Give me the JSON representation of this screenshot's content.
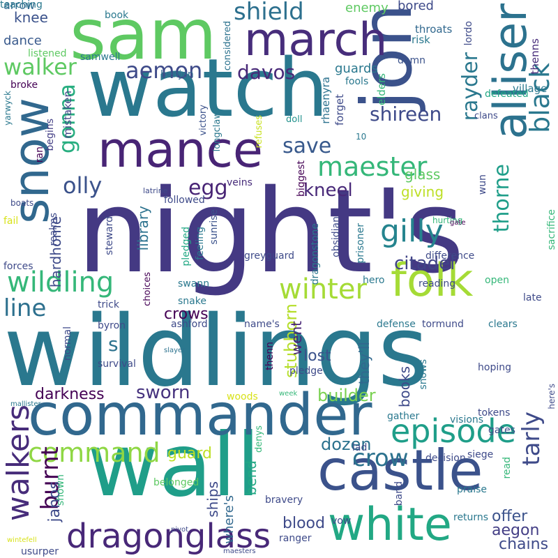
{
  "words": [
    {
      "text": "night's",
      "color": "#443983"
    },
    {
      "text": "wildlings",
      "color": "#2a788e"
    },
    {
      "text": "wall",
      "color": "#1f9e89"
    },
    {
      "text": "watch",
      "color": "#2a788e"
    },
    {
      "text": "sam",
      "color": "#5ec962"
    },
    {
      "text": "jon",
      "color": "#3b528b"
    },
    {
      "text": "commander",
      "color": "#31688e"
    },
    {
      "text": "castle",
      "color": "#3b528b"
    },
    {
      "text": "snow",
      "color": "#31688e"
    },
    {
      "text": "mance",
      "color": "#482475"
    },
    {
      "text": "march",
      "color": "#472d7b"
    },
    {
      "text": "alliser",
      "color": "#2c728e"
    },
    {
      "text": "folk",
      "color": "#a5db36"
    },
    {
      "text": "white",
      "color": "#22a884"
    },
    {
      "text": "dragonglass",
      "color": "#482878"
    },
    {
      "text": "episode",
      "color": "#1f9e89"
    },
    {
      "text": "walkers",
      "color": "#472c7a"
    },
    {
      "text": "gilly",
      "color": "#25848e"
    },
    {
      "text": "wildling",
      "color": "#35b779"
    },
    {
      "text": "winter",
      "color": "#a5db36"
    },
    {
      "text": "command",
      "color": "#8fd744"
    },
    {
      "text": "maester",
      "color": "#35b779"
    },
    {
      "text": "black",
      "color": "#2a788e"
    },
    {
      "text": "shield",
      "color": "#2d708e"
    },
    {
      "text": "walker",
      "color": "#5ec962"
    },
    {
      "text": "aemon",
      "color": "#3e4a89"
    },
    {
      "text": "save",
      "color": "#38598c"
    },
    {
      "text": "egg",
      "color": "#482475"
    },
    {
      "text": "olly",
      "color": "#3b528b"
    },
    {
      "text": "davos",
      "color": "#482878"
    },
    {
      "text": "shireen",
      "color": "#3e4a89"
    },
    {
      "text": "rayder",
      "color": "#2a788e"
    },
    {
      "text": "thorne",
      "color": "#1f9e89"
    },
    {
      "text": "gonna",
      "color": "#28ae80"
    },
    {
      "text": "line",
      "color": "#2d708e"
    },
    {
      "text": "crow",
      "color": "#2c728e"
    },
    {
      "text": "tarly",
      "color": "#3e4a89"
    },
    {
      "text": "burnt",
      "color": "#440154"
    },
    {
      "text": "citadel",
      "color": "#414487"
    },
    {
      "text": "s",
      "color": "#2c728e"
    },
    {
      "text": "kneel",
      "color": "#482878"
    },
    {
      "text": "sworn",
      "color": "#46327e"
    },
    {
      "text": "stubborn",
      "color": "#b5de2b"
    },
    {
      "text": "crows",
      "color": "#440154"
    },
    {
      "text": "janos",
      "color": "#3e4a89"
    },
    {
      "text": "guard",
      "color": "#bddf26"
    },
    {
      "text": "dozen",
      "color": "#2c728e"
    },
    {
      "text": "builder",
      "color": "#7ad151"
    },
    {
      "text": "lost",
      "color": "#3b528b"
    },
    {
      "text": "went",
      "color": "#482475"
    },
    {
      "text": "blood",
      "color": "#3e4a89"
    },
    {
      "text": "offer",
      "color": "#3b528b"
    },
    {
      "text": "aegon",
      "color": "#433e85"
    },
    {
      "text": "chains",
      "color": "#3e4a89"
    },
    {
      "text": "darkness",
      "color": "#440154"
    },
    {
      "text": "hardhome",
      "color": "#3e4a89"
    },
    {
      "text": "library",
      "color": "#2c728e"
    },
    {
      "text": "books",
      "color": "#3e4a89"
    },
    {
      "text": "they'll",
      "color": "#31688e"
    },
    {
      "text": "bend",
      "color": "#22a884"
    },
    {
      "text": "ships",
      "color": "#3e4a89"
    },
    {
      "text": "where's",
      "color": "#31688e"
    },
    {
      "text": "giving",
      "color": "#bddf26"
    },
    {
      "text": "glass",
      "color": "#5ec962"
    },
    {
      "text": "guards",
      "color": "#2a788e"
    },
    {
      "text": "knee",
      "color": "#3b528b"
    },
    {
      "text": "dance",
      "color": "#38598c"
    },
    {
      "text": "enemy",
      "color": "#5ec962"
    },
    {
      "text": "bored",
      "color": "#3e4a89"
    },
    {
      "text": "arrow",
      "color": "#31688e"
    },
    {
      "text": "book",
      "color": "#2a788e"
    },
    {
      "text": "throats",
      "color": "#31688e"
    },
    {
      "text": "risk",
      "color": "#2a788e"
    },
    {
      "text": "lordo",
      "color": "#3e4a89"
    },
    {
      "text": "village",
      "color": "#2a788e"
    },
    {
      "text": "thenns",
      "color": "#472c7a"
    },
    {
      "text": "damn",
      "color": "#3b528b"
    },
    {
      "text": "defeated",
      "color": "#22a884"
    },
    {
      "text": "clans",
      "color": "#3e4a89"
    },
    {
      "text": "benjen",
      "color": "#31688e"
    },
    {
      "text": "samwell",
      "color": "#2a788e"
    },
    {
      "text": "considered",
      "color": "#2c728e"
    },
    {
      "text": "listened",
      "color": "#5ec962"
    },
    {
      "text": "broke",
      "color": "#440154"
    },
    {
      "text": "begins",
      "color": "#433e85"
    },
    {
      "text": "mistaken",
      "color": "#414487"
    },
    {
      "text": "victory",
      "color": "#3b528b"
    },
    {
      "text": "longclaw",
      "color": "#2a788e"
    },
    {
      "text": "refuses",
      "color": "#c8e020"
    },
    {
      "text": "rhaenyra",
      "color": "#2c728e"
    },
    {
      "text": "forget",
      "color": "#3e4a89"
    },
    {
      "text": "fools",
      "color": "#2a788e"
    },
    {
      "text": "elders",
      "color": "#35b779"
    },
    {
      "text": "doll",
      "color": "#21918c"
    },
    {
      "text": "10",
      "color": "#2a788e"
    },
    {
      "text": "yarwyck",
      "color": "#2a788e"
    },
    {
      "text": "ran",
      "color": "#440154"
    },
    {
      "text": "followed",
      "color": "#3e4a89"
    },
    {
      "text": "latrine",
      "color": "#3e4a89"
    },
    {
      "text": "veins",
      "color": "#472c7a"
    },
    {
      "text": "boats",
      "color": "#3e4a89"
    },
    {
      "text": "fail",
      "color": "#d8e219"
    },
    {
      "text": "realms",
      "color": "#3e4a89"
    },
    {
      "text": "steward",
      "color": "#3e4a89"
    },
    {
      "text": "pledged",
      "color": "#22a884"
    },
    {
      "text": "feeling",
      "color": "#2a788e"
    },
    {
      "text": "sunrise",
      "color": "#3b528b"
    },
    {
      "text": "biggest",
      "color": "#440154"
    },
    {
      "text": "dragonstone",
      "color": "#2a788e"
    },
    {
      "text": "obsidian",
      "color": "#3e4a89"
    },
    {
      "text": "prisoner",
      "color": "#2a788e"
    },
    {
      "text": "hurting",
      "color": "#35b779"
    },
    {
      "text": "gate",
      "color": "#440154"
    },
    {
      "text": "wun",
      "color": "#3e4a89"
    },
    {
      "text": "sacrifice",
      "color": "#35b779"
    },
    {
      "text": "difference",
      "color": "#3e4a89"
    },
    {
      "text": "forces",
      "color": "#3e4a89"
    },
    {
      "text": "greyguard",
      "color": "#3e4a89"
    },
    {
      "text": "hero",
      "color": "#2a788e"
    },
    {
      "text": "choices",
      "color": "#440154"
    },
    {
      "text": "swann",
      "color": "#2a788e"
    },
    {
      "text": "open",
      "color": "#35b779"
    },
    {
      "text": "reading",
      "color": "#3e4a89"
    },
    {
      "text": "snake",
      "color": "#2a788e"
    },
    {
      "text": "trick",
      "color": "#3e4a89"
    },
    {
      "text": "late",
      "color": "#3e4a89"
    },
    {
      "text": "byron",
      "color": "#3e4a89"
    },
    {
      "text": "ashford",
      "color": "#3e4a89"
    },
    {
      "text": "normal",
      "color": "#3e4a89"
    },
    {
      "text": "name's",
      "color": "#3e4a89"
    },
    {
      "text": "defense",
      "color": "#2a788e"
    },
    {
      "text": "tormund",
      "color": "#3e4a89"
    },
    {
      "text": "clears",
      "color": "#2a788e"
    },
    {
      "text": "survival",
      "color": "#3e4a89"
    },
    {
      "text": "slayer",
      "color": "#2c728e"
    },
    {
      "text": "thenn",
      "color": "#440154"
    },
    {
      "text": "pledge",
      "color": "#3e4a89"
    },
    {
      "text": "snows",
      "color": "#2a788e"
    },
    {
      "text": "hoping",
      "color": "#3e4a89"
    },
    {
      "text": "here's",
      "color": "#3e4a89"
    },
    {
      "text": "mallister",
      "color": "#2a788e"
    },
    {
      "text": "week",
      "color": "#35b779"
    },
    {
      "text": "woods",
      "color": "#d8e219"
    },
    {
      "text": "tokens",
      "color": "#3e4a89"
    },
    {
      "text": "gather",
      "color": "#2a788e"
    },
    {
      "text": "visions",
      "color": "#2a788e"
    },
    {
      "text": "gates",
      "color": "#3e4a89"
    },
    {
      "text": "lad",
      "color": "#3e4a89"
    },
    {
      "text": "siege",
      "color": "#3e4a89"
    },
    {
      "text": "decision",
      "color": "#3e4a89"
    },
    {
      "text": "read",
      "color": "#35b779"
    },
    {
      "text": "praise",
      "color": "#2a788e"
    },
    {
      "text": "denys",
      "color": "#35b779"
    },
    {
      "text": "belonged",
      "color": "#5ec962"
    },
    {
      "text": "shown",
      "color": "#35b779"
    },
    {
      "text": "bravery",
      "color": "#3e4a89"
    },
    {
      "text": "band",
      "color": "#3e4a89"
    },
    {
      "text": "returns",
      "color": "#2a788e"
    },
    {
      "text": "ranger",
      "color": "#3e4a89"
    },
    {
      "text": "vow",
      "color": "#3e4a89"
    },
    {
      "text": "pivot",
      "color": "#3e4a89"
    },
    {
      "text": "wintefell",
      "color": "#d8e219"
    },
    {
      "text": "usurper",
      "color": "#3e4a89"
    },
    {
      "text": "maesters",
      "color": "#3e4a89"
    },
    {
      "text": "teaching",
      "color": "#2a788e"
    }
  ]
}
